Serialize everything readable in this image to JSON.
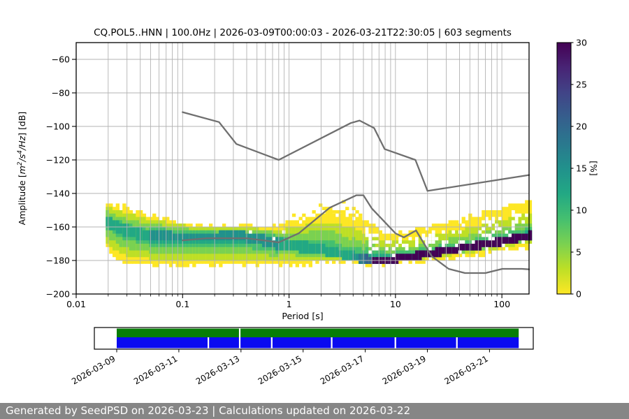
{
  "title": "CQ.POL5..HNN | 100.0Hz | 2026-03-09T00:00:03 - 2026-03-21T22:30:05 | 603 segments",
  "footer": {
    "text": "Generated by SeedPSD on 2026-03-23 | Calculations updated on 2026-03-22"
  },
  "chart_data": {
    "type": "heatmap",
    "title": "CQ.POL5..HNN | 100.0Hz | 2026-03-09T00:00:03 - 2026-03-21T22:30:05 | 603 segments",
    "xlabel": "Period [s]",
    "ylabel": "Amplitude [m²/s⁴/Hz] [dB]",
    "ylabel_parts": [
      {
        "t": "Amplitude ["
      },
      {
        "t": "m",
        "i": true
      },
      {
        "t": "2",
        "i": true,
        "sup": true
      },
      {
        "t": "/",
        "i": true
      },
      {
        "t": "s",
        "i": true
      },
      {
        "t": "4",
        "i": true,
        "sup": true
      },
      {
        "t": "/",
        "i": true
      },
      {
        "t": "Hz",
        "i": true
      },
      {
        "t": "] [dB]"
      }
    ],
    "xscale": "log",
    "xlim": [
      0.01,
      180
    ],
    "ylim": [
      -200,
      -50
    ],
    "grid": true,
    "x_ticks": [
      {
        "v": 0.01,
        "label": "0.01"
      },
      {
        "v": 0.1,
        "label": "0.1"
      },
      {
        "v": 1,
        "label": "1"
      },
      {
        "v": 10,
        "label": "10"
      },
      {
        "v": 100,
        "label": "100"
      }
    ],
    "y_ticks": [
      {
        "v": -60,
        "label": "−60"
      },
      {
        "v": -80,
        "label": "−80"
      },
      {
        "v": -100,
        "label": "−100"
      },
      {
        "v": -120,
        "label": "−120"
      },
      {
        "v": -140,
        "label": "−140"
      },
      {
        "v": -160,
        "label": "−160"
      },
      {
        "v": -180,
        "label": "−180"
      },
      {
        "v": -200,
        "label": "−200"
      }
    ],
    "colorbar": {
      "label": "[%]",
      "min": 0,
      "max": 30,
      "tick_values": [
        0,
        5,
        10,
        15,
        20,
        25,
        30
      ],
      "colormap": "viridis_r",
      "stops": [
        [
          0.0,
          "#fde725"
        ],
        [
          0.1,
          "#bddf26"
        ],
        [
          0.2,
          "#7ad151"
        ],
        [
          0.3,
          "#44bf70"
        ],
        [
          0.4,
          "#22a884"
        ],
        [
          0.5,
          "#21918c"
        ],
        [
          0.6,
          "#2a788e"
        ],
        [
          0.7,
          "#355f8d"
        ],
        [
          0.8,
          "#414487"
        ],
        [
          0.9,
          "#482475"
        ],
        [
          1.0,
          "#440154"
        ]
      ]
    },
    "noise_models": {
      "color": "#6f6f6f",
      "line_width": 2.3,
      "nhnm": [
        [
          0.1,
          -91.5
        ],
        [
          0.22,
          -97.4
        ],
        [
          0.32,
          -110.5
        ],
        [
          0.8,
          -120.0
        ],
        [
          3.8,
          -98.0
        ],
        [
          4.6,
          -96.5
        ],
        [
          6.3,
          -101.0
        ],
        [
          7.9,
          -113.5
        ],
        [
          15.4,
          -120.0
        ],
        [
          20.0,
          -138.5
        ],
        [
          180.0,
          -129.0
        ]
      ],
      "nlnm": [
        [
          0.1,
          -168.0
        ],
        [
          0.17,
          -166.7
        ],
        [
          0.4,
          -166.7
        ],
        [
          0.8,
          -169.2
        ],
        [
          1.24,
          -163.7
        ],
        [
          2.4,
          -148.6
        ],
        [
          4.3,
          -141.1
        ],
        [
          5.0,
          -141.1
        ],
        [
          6.0,
          -149.0
        ],
        [
          10.0,
          -163.8
        ],
        [
          12.0,
          -166.2
        ],
        [
          15.6,
          -162.1
        ],
        [
          21.9,
          -177.5
        ],
        [
          31.6,
          -185.0
        ],
        [
          45.0,
          -187.5
        ],
        [
          70.0,
          -187.5
        ],
        [
          101.0,
          -185.0
        ],
        [
          154.0,
          -185.0
        ],
        [
          180.0,
          -185.3
        ]
      ]
    },
    "histogram": {
      "db_bin": 2,
      "level_colors": [
        "#fde725",
        "#bddf26",
        "#7ad151",
        "#44bf70",
        "#22a884",
        "#21918c",
        "#2a788e",
        "#355f8d",
        "#440154"
      ],
      "profile": [
        {
          "p": 0.019,
          "top": -146.0,
          "bottom": -171.0,
          "mode": -156.0,
          "level": 4,
          "half": 2.5,
          "exp": 1.0
        },
        {
          "p": 0.024,
          "top": -148.0,
          "bottom": -178.0,
          "mode": -160.0,
          "level": 4,
          "half": 2.5,
          "exp": 1.0
        },
        {
          "p": 0.032,
          "top": -150.0,
          "bottom": -181.5,
          "mode": -163.0,
          "level": 4,
          "half": 2.5,
          "exp": 1.0
        },
        {
          "p": 0.05,
          "top": -154.0,
          "bottom": -182.0,
          "mode": -165.0,
          "level": 4.5,
          "half": 2.0,
          "exp": 1.05
        },
        {
          "p": 0.08,
          "top": -157.0,
          "bottom": -182.0,
          "mode": -166.0,
          "level": 4.5,
          "half": 2.0,
          "exp": 1.1
        },
        {
          "p": 0.13,
          "top": -159.5,
          "bottom": -182.0,
          "mode": -166.0,
          "level": 4.5,
          "half": 2.0,
          "exp": 1.1
        },
        {
          "p": 0.22,
          "top": -160.5,
          "bottom": -182.0,
          "mode": -166.0,
          "level": 5,
          "half": 2.0,
          "exp": 1.15
        },
        {
          "p": 0.35,
          "top": -160.0,
          "bottom": -182.0,
          "mode": -165.5,
          "level": 5,
          "half": 2.0,
          "exp": 1.15
        },
        {
          "p": 0.55,
          "top": -160.5,
          "bottom": -182.0,
          "mode": -167.5,
          "level": 5,
          "half": 2.2,
          "exp": 1.15
        },
        {
          "p": 0.8,
          "top": -160.0,
          "bottom": -181.5,
          "mode": -170.0,
          "level": 4.5,
          "half": 2.5,
          "exp": 1.1
        },
        {
          "p": 1.2,
          "top": -157.0,
          "bottom": -181.0,
          "mode": -171.5,
          "level": 4,
          "half": 2.5,
          "exp": 1.05
        },
        {
          "p": 1.8,
          "top": -154.0,
          "bottom": -180.5,
          "mode": -173.0,
          "level": 3.5,
          "half": 2.2,
          "exp": 1.0
        },
        {
          "p": 2.6,
          "top": -152.5,
          "bottom": -180.0,
          "mode": -175.0,
          "level": 3.5,
          "half": 2.0,
          "exp": 1.0
        },
        {
          "p": 3.6,
          "top": -153.5,
          "bottom": -180.0,
          "mode": -177.0,
          "level": 4,
          "half": 1.8,
          "exp": 1.3
        },
        {
          "p": 4.8,
          "top": -157.0,
          "bottom": -180.5,
          "mode": -178.8,
          "level": 6,
          "half": 1.4,
          "exp": 2.0
        },
        {
          "p": 6.5,
          "top": -161.0,
          "bottom": -181.0,
          "mode": -179.8,
          "level": 8,
          "half": 1.2,
          "exp": 3.0
        },
        {
          "p": 9.0,
          "top": -164.5,
          "bottom": -181.0,
          "mode": -179.3,
          "level": 8,
          "half": 1.2,
          "exp": 3.4
        },
        {
          "p": 13.0,
          "top": -164.0,
          "bottom": -180.0,
          "mode": -178.0,
          "level": 8,
          "half": 1.2,
          "exp": 3.5
        },
        {
          "p": 19.0,
          "top": -161.0,
          "bottom": -179.0,
          "mode": -176.4,
          "level": 8,
          "half": 1.3,
          "exp": 3.5
        },
        {
          "p": 28.0,
          "top": -158.5,
          "bottom": -178.0,
          "mode": -174.6,
          "level": 8,
          "half": 1.3,
          "exp": 3.5
        },
        {
          "p": 40.0,
          "top": -156.5,
          "bottom": -177.0,
          "mode": -173.0,
          "level": 8,
          "half": 1.4,
          "exp": 3.5
        },
        {
          "p": 60.0,
          "top": -154.0,
          "bottom": -175.5,
          "mode": -171.0,
          "level": 8,
          "half": 1.4,
          "exp": 3.5
        },
        {
          "p": 85.0,
          "top": -151.5,
          "bottom": -174.0,
          "mode": -169.3,
          "level": 8,
          "half": 1.5,
          "exp": 3.5
        },
        {
          "p": 120.0,
          "top": -149.0,
          "bottom": -172.5,
          "mode": -167.5,
          "level": 8,
          "half": 1.5,
          "exp": 3.5
        },
        {
          "p": 180.0,
          "top": -145.5,
          "bottom": -170.5,
          "mode": -165.3,
          "level": 8,
          "half": 1.6,
          "exp": 3.5
        }
      ]
    },
    "timeline": {
      "green_color": "#067d06",
      "blue_color": "#0a0af0",
      "coverage_start": "2026-03-09",
      "coverage_end_day_offset": 12.94,
      "tick_day_offsets": [
        0,
        2,
        4,
        6,
        8,
        10,
        12
      ],
      "tick_labels": [
        "2026-03-09",
        "2026-03-11",
        "2026-03-13",
        "2026-03-15",
        "2026-03-17",
        "2026-03-19",
        "2026-03-21"
      ],
      "green_gap_day_offsets": [
        3.96
      ],
      "blue_gap_day_offsets": [
        2.95,
        3.96,
        4.99,
        6.92,
        8.97,
        10.95
      ]
    }
  }
}
